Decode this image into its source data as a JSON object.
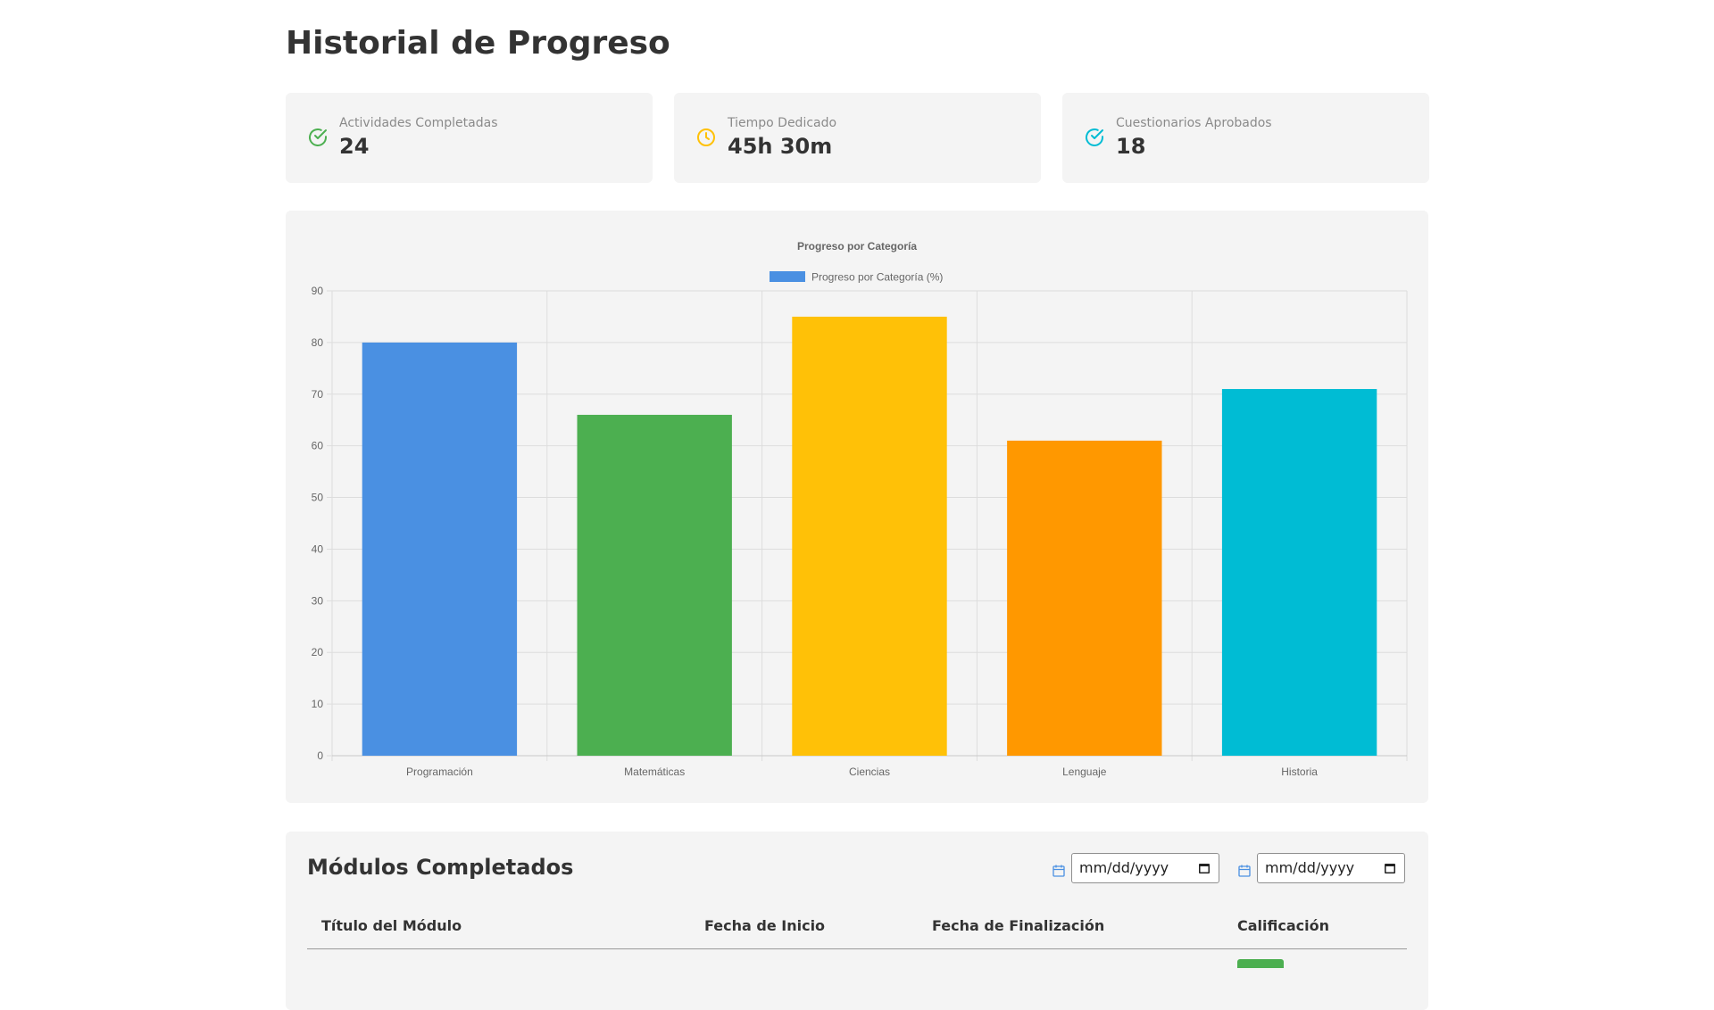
{
  "page": {
    "title": "Historial de Progreso"
  },
  "stats": [
    {
      "label": "Actividades Completadas",
      "value": "24",
      "icon": "check-circle-icon",
      "color": "#4caf50"
    },
    {
      "label": "Tiempo Dedicado",
      "value": "45h 30m",
      "icon": "clock-icon",
      "color": "#ffc107"
    },
    {
      "label": "Cuestionarios Aprobados",
      "value": "18",
      "icon": "check-circle-icon",
      "color": "#00bcd4"
    }
  ],
  "chart_data": {
    "type": "bar",
    "title": "Progreso por Categoría",
    "legend": "Progreso por Categoría (%)",
    "legend_position": "top",
    "legend_color": "#4a90e2",
    "categories": [
      "Programación",
      "Matemáticas",
      "Ciencias",
      "Lenguaje",
      "Historia"
    ],
    "values": [
      80,
      66,
      85,
      61,
      71
    ],
    "colors": [
      "#4a90e2",
      "#4caf50",
      "#ffc107",
      "#ff9800",
      "#00bcd4"
    ],
    "ylim": [
      0,
      90
    ],
    "yticks": [
      0,
      10,
      20,
      30,
      40,
      50,
      60,
      70,
      80,
      90
    ],
    "grid": true
  },
  "modules": {
    "title": "Módulos Completados",
    "date_from": {
      "placeholder": "mm/dd/yyyy"
    },
    "date_to": {
      "placeholder": "mm/dd/yyyy"
    },
    "columns": [
      "Título del Módulo",
      "Fecha de Inicio",
      "Fecha de Finalización",
      "Calificación"
    ],
    "grade_color": "#4caf50"
  }
}
